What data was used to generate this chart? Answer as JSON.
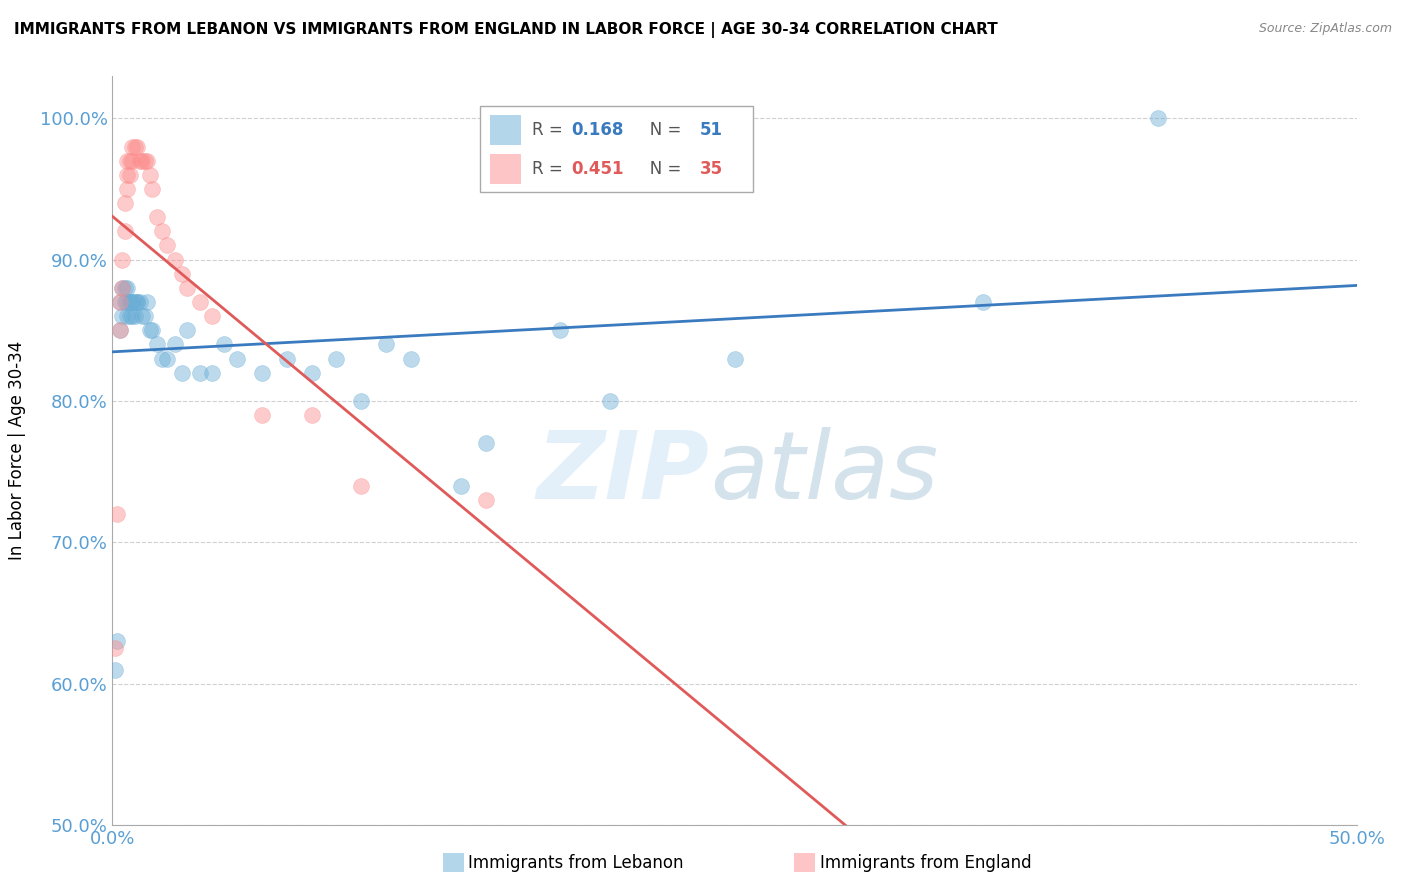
{
  "title": "IMMIGRANTS FROM LEBANON VS IMMIGRANTS FROM ENGLAND IN LABOR FORCE | AGE 30-34 CORRELATION CHART",
  "source": "Source: ZipAtlas.com",
  "ylabel": "In Labor Force | Age 30-34",
  "ytick_values": [
    0.5,
    0.6,
    0.7,
    0.8,
    0.9,
    1.0
  ],
  "xlim": [
    0.0,
    0.5
  ],
  "ylim": [
    0.5,
    1.03
  ],
  "lebanon_color": "#6baed6",
  "england_color": "#fc8d8d",
  "line_leb_color": "#3a7abf",
  "line_eng_color": "#e05a5a",
  "lebanon_R": 0.168,
  "lebanon_N": 51,
  "england_R": 0.451,
  "england_N": 35,
  "lebanon_x": [
    0.001,
    0.002,
    0.003,
    0.003,
    0.004,
    0.004,
    0.005,
    0.005,
    0.006,
    0.006,
    0.006,
    0.007,
    0.007,
    0.007,
    0.008,
    0.008,
    0.008,
    0.009,
    0.009,
    0.01,
    0.01,
    0.011,
    0.012,
    0.013,
    0.014,
    0.015,
    0.016,
    0.018,
    0.02,
    0.022,
    0.025,
    0.028,
    0.03,
    0.035,
    0.04,
    0.045,
    0.05,
    0.06,
    0.07,
    0.08,
    0.09,
    0.1,
    0.11,
    0.12,
    0.14,
    0.15,
    0.18,
    0.2,
    0.25,
    0.35,
    0.42
  ],
  "lebanon_y": [
    0.61,
    0.63,
    0.85,
    0.87,
    0.86,
    0.88,
    0.87,
    0.88,
    0.86,
    0.87,
    0.88,
    0.86,
    0.87,
    0.87,
    0.86,
    0.87,
    0.87,
    0.86,
    0.87,
    0.87,
    0.87,
    0.87,
    0.86,
    0.86,
    0.87,
    0.85,
    0.85,
    0.84,
    0.83,
    0.83,
    0.84,
    0.82,
    0.85,
    0.82,
    0.82,
    0.84,
    0.83,
    0.82,
    0.83,
    0.82,
    0.83,
    0.8,
    0.84,
    0.83,
    0.74,
    0.77,
    0.85,
    0.8,
    0.83,
    0.87,
    1.0
  ],
  "england_x": [
    0.001,
    0.002,
    0.003,
    0.003,
    0.004,
    0.004,
    0.005,
    0.005,
    0.006,
    0.006,
    0.006,
    0.007,
    0.007,
    0.008,
    0.008,
    0.009,
    0.01,
    0.011,
    0.012,
    0.013,
    0.014,
    0.015,
    0.016,
    0.018,
    0.02,
    0.022,
    0.025,
    0.028,
    0.03,
    0.035,
    0.04,
    0.06,
    0.08,
    0.1,
    0.15
  ],
  "england_y": [
    0.625,
    0.72,
    0.85,
    0.87,
    0.88,
    0.9,
    0.92,
    0.94,
    0.95,
    0.96,
    0.97,
    0.96,
    0.97,
    0.97,
    0.98,
    0.98,
    0.98,
    0.97,
    0.97,
    0.97,
    0.97,
    0.96,
    0.95,
    0.93,
    0.92,
    0.91,
    0.9,
    0.89,
    0.88,
    0.87,
    0.86,
    0.79,
    0.79,
    0.74,
    0.73
  ]
}
